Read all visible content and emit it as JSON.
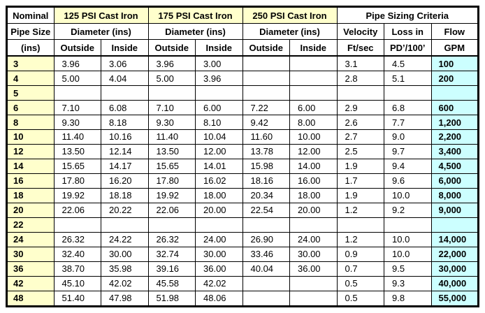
{
  "colors": {
    "highlight_yellow": "#FFFFCC",
    "highlight_cyan": "#CCFFFF",
    "border": "#000000",
    "text": "#000000"
  },
  "header": {
    "col1": [
      "Nominal",
      "Pipe Size",
      "(ins)"
    ],
    "group_titles": [
      "125 PSI Cast Iron",
      "175 PSI Cast Iron",
      "250 PSI Cast Iron",
      "Pipe Sizing Criteria"
    ],
    "diameter_label": "Diameter (ins)",
    "outside": "Outside",
    "inside": "Inside",
    "criteria": [
      {
        "line1": "Velocity",
        "line2": "Ft/sec"
      },
      {
        "line1": "Loss in",
        "line2": "PD’/100’"
      },
      {
        "line1": "Flow",
        "line2": "GPM"
      }
    ]
  },
  "rows": [
    {
      "size": "3",
      "values": [
        "3.96",
        "3.06",
        "3.96",
        "3.00",
        "",
        "",
        "3.1",
        "4.5"
      ],
      "flow": "100"
    },
    {
      "size": "4",
      "values": [
        "5.00",
        "4.04",
        "5.00",
        "3.96",
        "",
        "",
        "2.8",
        "5.1"
      ],
      "flow": "200"
    },
    {
      "size": "5",
      "values": [
        "",
        "",
        "",
        "",
        "",
        "",
        "",
        ""
      ],
      "flow": ""
    },
    {
      "size": "6",
      "values": [
        "7.10",
        "6.08",
        "7.10",
        "6.00",
        "7.22",
        "6.00",
        "2.9",
        "6.8"
      ],
      "flow": "600"
    },
    {
      "size": "8",
      "values": [
        "9.30",
        "8.18",
        "9.30",
        "8.10",
        "9.42",
        "8.00",
        "2.6",
        "7.7"
      ],
      "flow": "1,200"
    },
    {
      "size": "10",
      "values": [
        "11.40",
        "10.16",
        "11.40",
        "10.04",
        "11.60",
        "10.00",
        "2.7",
        "9.0"
      ],
      "flow": "2,200"
    },
    {
      "size": "12",
      "values": [
        "13.50",
        "12.14",
        "13.50",
        "12.00",
        "13.78",
        "12.00",
        "2.5",
        "9.7"
      ],
      "flow": "3,400"
    },
    {
      "size": "14",
      "values": [
        "15.65",
        "14.17",
        "15.65",
        "14.01",
        "15.98",
        "14.00",
        "1.9",
        "9.4"
      ],
      "flow": "4,500"
    },
    {
      "size": "16",
      "values": [
        "17.80",
        "16.20",
        "17.80",
        "16.02",
        "18.16",
        "16.00",
        "1.7",
        "9.6"
      ],
      "flow": "6,000"
    },
    {
      "size": "18",
      "values": [
        "19.92",
        "18.18",
        "19.92",
        "18.00",
        "20.34",
        "18.00",
        "1.9",
        "10.0"
      ],
      "flow": "8,000"
    },
    {
      "size": "20",
      "values": [
        "22.06",
        "20.22",
        "22.06",
        "20.00",
        "22.54",
        "20.00",
        "1.2",
        "9.2"
      ],
      "flow": "9,000"
    },
    {
      "size": "22",
      "values": [
        "",
        "",
        "",
        "",
        "",
        "",
        "",
        ""
      ],
      "flow": ""
    },
    {
      "size": "24",
      "values": [
        "26.32",
        "24.22",
        "26.32",
        "24.00",
        "26.90",
        "24.00",
        "1.2",
        "10.0"
      ],
      "flow": "14,000"
    },
    {
      "size": "30",
      "values": [
        "32.40",
        "30.00",
        "32.74",
        "30.00",
        "33.46",
        "30.00",
        "0.9",
        "10.0"
      ],
      "flow": "22,000"
    },
    {
      "size": "36",
      "values": [
        "38.70",
        "35.98",
        "39.16",
        "36.00",
        "40.04",
        "36.00",
        "0.7",
        "9.5"
      ],
      "flow": "30,000"
    },
    {
      "size": "42",
      "values": [
        "45.10",
        "42.02",
        "45.58",
        "42.02",
        "",
        "",
        "0.5",
        "9.3"
      ],
      "flow": "40,000"
    },
    {
      "size": "48",
      "values": [
        "51.40",
        "47.98",
        "51.98",
        "48.06",
        "",
        "",
        "0.5",
        "9.8"
      ],
      "flow": "55,000"
    }
  ]
}
